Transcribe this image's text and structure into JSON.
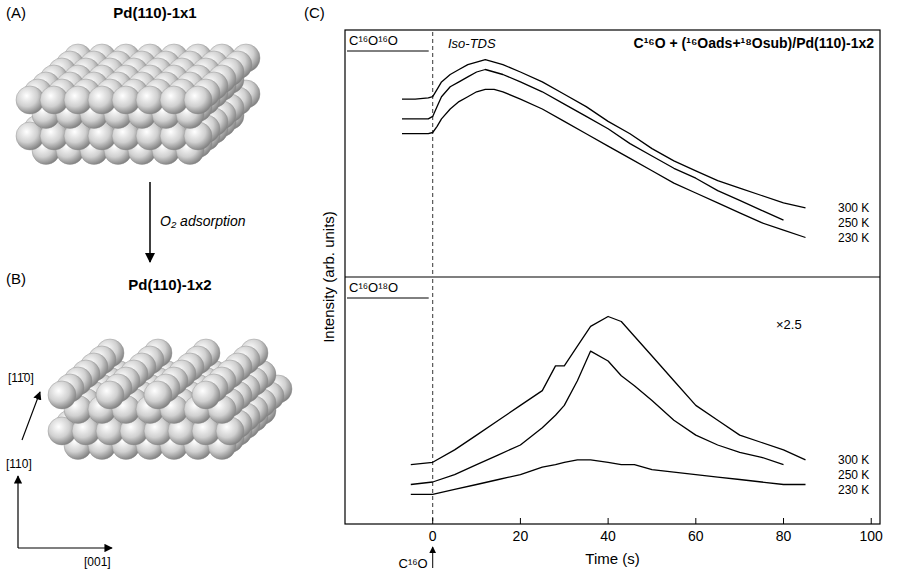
{
  "panels": [
    {
      "label": "(A)",
      "title": "Pd(110)-1x1"
    },
    {
      "label": "(B)",
      "title": "Pd(110)-1x2"
    }
  ],
  "arrow_label": "O₂ adsorption",
  "directions": [
    "[11̄0]",
    "[110]",
    "[001]"
  ],
  "chart_data": [
    {
      "type": "line",
      "label": "(C)",
      "title": "C¹⁶O + (¹⁶Oads+¹⁸Osub)/Pd(110)-1x2",
      "subtitle": "Iso-TDS",
      "y_label": "Intensity (arb. units)",
      "panel_title": "C¹⁶O¹⁶O",
      "xlim": [
        -20,
        102
      ],
      "ylim": [
        0,
        10
      ],
      "tick_labels": false,
      "series": [
        {
          "name": "300 K",
          "color": "#000000",
          "x": [
            -7,
            -4,
            -1,
            0,
            1,
            2,
            4,
            6,
            8,
            10,
            12,
            14,
            16,
            20,
            25,
            30,
            35,
            40,
            45,
            50,
            55,
            60,
            65,
            70,
            75,
            80,
            85
          ],
          "values": [
            7.2,
            7.2,
            7.25,
            7.3,
            7.6,
            7.9,
            8.2,
            8.4,
            8.6,
            8.7,
            8.8,
            8.7,
            8.6,
            8.3,
            7.9,
            7.4,
            6.9,
            6.3,
            5.8,
            5.2,
            4.7,
            4.3,
            3.9,
            3.6,
            3.3,
            3.0,
            2.8
          ]
        },
        {
          "name": "250 K",
          "color": "#000000",
          "x": [
            -7,
            -4,
            -1,
            0,
            1,
            2,
            4,
            6,
            8,
            10,
            12,
            14,
            16,
            20,
            25,
            30,
            35,
            40,
            45,
            50,
            55,
            60,
            65,
            70,
            75,
            80
          ],
          "values": [
            6.4,
            6.4,
            6.4,
            6.5,
            6.9,
            7.3,
            7.7,
            7.9,
            8.1,
            8.3,
            8.4,
            8.3,
            8.2,
            7.9,
            7.5,
            7.0,
            6.5,
            6.0,
            5.4,
            4.9,
            4.4,
            4.0,
            3.5,
            3.1,
            2.7,
            2.3
          ]
        },
        {
          "name": "230 K",
          "color": "#000000",
          "x": [
            -7,
            -4,
            -1,
            0,
            1,
            2,
            4,
            6,
            8,
            10,
            12,
            14,
            16,
            20,
            25,
            30,
            35,
            40,
            45,
            50,
            55,
            60,
            65,
            70,
            75,
            80,
            85
          ],
          "values": [
            5.8,
            5.8,
            5.8,
            5.85,
            6.1,
            6.4,
            6.8,
            7.1,
            7.3,
            7.5,
            7.6,
            7.6,
            7.5,
            7.2,
            6.8,
            6.3,
            5.8,
            5.3,
            4.8,
            4.3,
            3.8,
            3.4,
            3.0,
            2.6,
            2.2,
            1.9,
            1.6
          ]
        }
      ]
    },
    {
      "type": "line",
      "panel_title": "C¹⁶O¹⁸O",
      "x_label": "Time (s)",
      "xlim": [
        -20,
        102
      ],
      "xticks": [
        0,
        20,
        40,
        60,
        80,
        100
      ],
      "ylim": [
        0,
        10
      ],
      "tick_labels": "x",
      "annotations": [
        {
          "text": "×2.5"
        },
        {
          "text": "C¹⁶O",
          "x": 0
        }
      ],
      "series": [
        {
          "name": "300 K",
          "color": "#000000",
          "x": [
            -5,
            0,
            5,
            10,
            15,
            20,
            25,
            28,
            30,
            33,
            36,
            40,
            43,
            46,
            50,
            55,
            60,
            65,
            70,
            75,
            80,
            85
          ],
          "values": [
            2.4,
            2.5,
            3.0,
            3.6,
            4.2,
            4.8,
            5.4,
            6.4,
            6.4,
            7.2,
            8.0,
            8.4,
            8.2,
            7.6,
            6.8,
            5.8,
            4.8,
            4.2,
            3.6,
            3.3,
            3.0,
            2.6
          ]
        },
        {
          "name": "250 K",
          "color": "#000000",
          "x": [
            -5,
            0,
            5,
            10,
            15,
            20,
            25,
            28,
            30,
            33,
            36,
            40,
            43,
            46,
            50,
            55,
            60,
            65,
            70,
            75,
            80
          ],
          "values": [
            1.6,
            1.7,
            2.0,
            2.4,
            2.8,
            3.2,
            3.9,
            4.4,
            4.8,
            5.8,
            7.0,
            6.6,
            6.0,
            5.6,
            5.0,
            4.2,
            3.6,
            3.2,
            2.9,
            2.7,
            2.4
          ]
        },
        {
          "name": "230 K",
          "color": "#000000",
          "x": [
            -5,
            0,
            5,
            10,
            15,
            20,
            25,
            28,
            30,
            33,
            36,
            40,
            43,
            46,
            50,
            55,
            60,
            65,
            70,
            75,
            80,
            85
          ],
          "values": [
            1.2,
            1.2,
            1.4,
            1.6,
            1.8,
            2.0,
            2.3,
            2.4,
            2.5,
            2.6,
            2.6,
            2.5,
            2.4,
            2.4,
            2.2,
            2.1,
            2.0,
            1.9,
            1.8,
            1.7,
            1.6,
            1.6
          ]
        }
      ]
    }
  ]
}
